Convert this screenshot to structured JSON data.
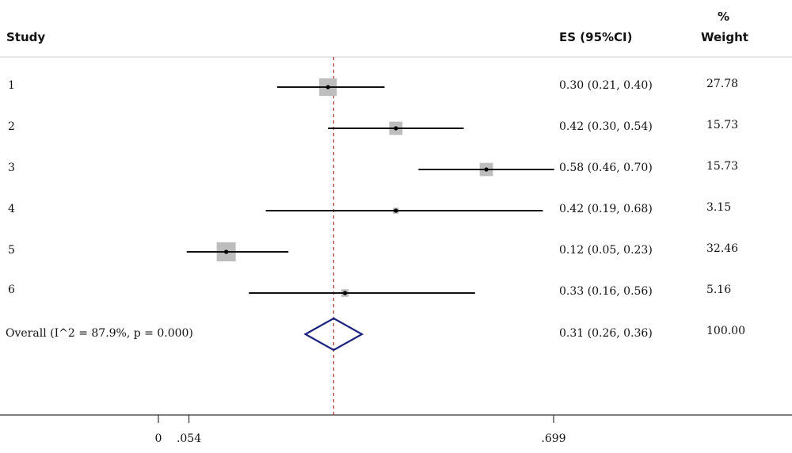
{
  "chart_data": {
    "type": "forest",
    "columns": {
      "study": "Study",
      "es": "ES (95%CI)",
      "weight_pct": "%",
      "weight": "Weight"
    },
    "studies": [
      {
        "label": "1",
        "es": 0.3,
        "lo": 0.21,
        "hi": 0.4,
        "es_text": "0.30 (0.21, 0.40)",
        "weight": 27.78,
        "weight_text": "27.78"
      },
      {
        "label": "2",
        "es": 0.42,
        "lo": 0.3,
        "hi": 0.54,
        "es_text": "0.42 (0.30, 0.54)",
        "weight": 15.73,
        "weight_text": "15.73"
      },
      {
        "label": "3",
        "es": 0.58,
        "lo": 0.46,
        "hi": 0.7,
        "es_text": "0.58 (0.46, 0.70)",
        "weight": 15.73,
        "weight_text": "15.73"
      },
      {
        "label": "4",
        "es": 0.42,
        "lo": 0.19,
        "hi": 0.68,
        "es_text": "0.42 (0.19, 0.68)",
        "weight": 3.15,
        "weight_text": "3.15"
      },
      {
        "label": "5",
        "es": 0.12,
        "lo": 0.05,
        "hi": 0.23,
        "es_text": "0.12 (0.05, 0.23)",
        "weight": 32.46,
        "weight_text": "32.46"
      },
      {
        "label": "6",
        "es": 0.33,
        "lo": 0.16,
        "hi": 0.56,
        "es_text": "0.33 (0.16, 0.56)",
        "weight": 5.16,
        "weight_text": "5.16"
      }
    ],
    "overall": {
      "label": "Overall (I^2 = 87.9%, p = 0.000)",
      "es": 0.31,
      "lo": 0.26,
      "hi": 0.36,
      "es_text": "0.31 (0.26, 0.36)",
      "weight_text": "100.00"
    },
    "x_ticks": [
      {
        "value": 0,
        "label": "0"
      },
      {
        "value": 0.054,
        "label": ".054"
      },
      {
        "value": 0.699,
        "label": ".699"
      }
    ],
    "reference_line": 0.31,
    "colors": {
      "box": "#bdbdbd",
      "ci_line": "#111111",
      "diamond": "#1a237e",
      "reference_line": "#b03a2e"
    }
  }
}
